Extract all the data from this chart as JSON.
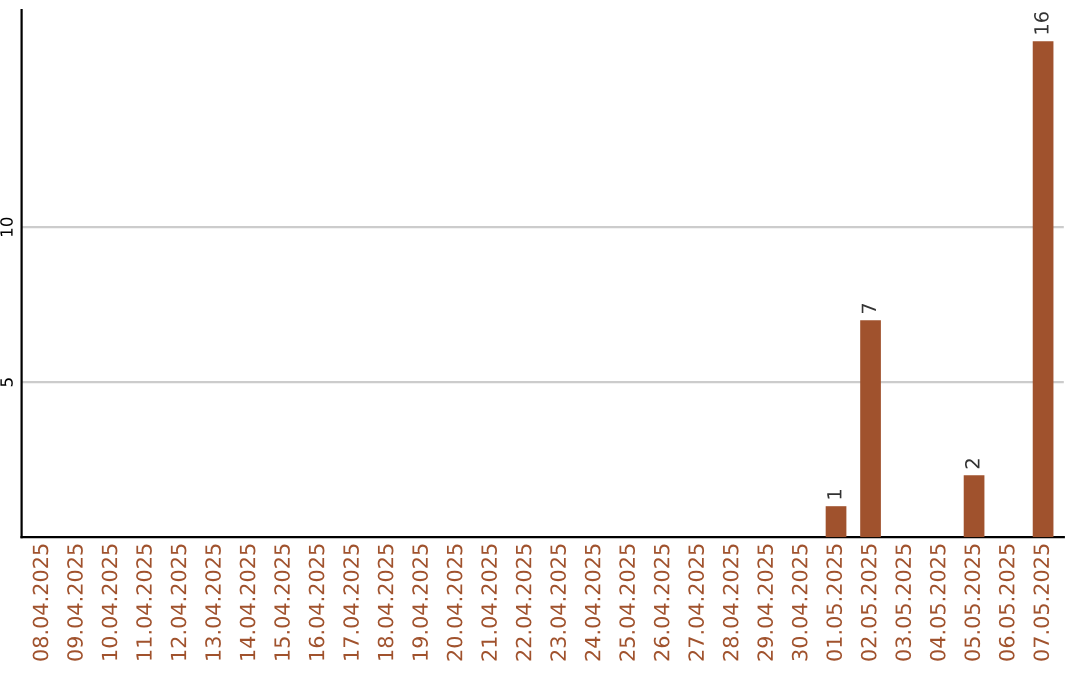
{
  "chart_data": {
    "type": "bar",
    "categories": [
      "08.04.2025",
      "09.04.2025",
      "10.04.2025",
      "11.04.2025",
      "12.04.2025",
      "13.04.2025",
      "14.04.2025",
      "15.04.2025",
      "16.04.2025",
      "17.04.2025",
      "18.04.2025",
      "19.04.2025",
      "20.04.2025",
      "21.04.2025",
      "22.04.2025",
      "23.04.2025",
      "24.04.2025",
      "25.04.2025",
      "26.04.2025",
      "27.04.2025",
      "28.04.2025",
      "29.04.2025",
      "30.04.2025",
      "01.05.2025",
      "02.05.2025",
      "03.05.2025",
      "04.05.2025",
      "05.05.2025",
      "06.05.2025",
      "07.05.2025"
    ],
    "values": [
      0,
      0,
      0,
      0,
      0,
      0,
      0,
      0,
      0,
      0,
      0,
      0,
      0,
      0,
      0,
      0,
      0,
      0,
      0,
      0,
      0,
      0,
      0,
      1,
      7,
      0,
      0,
      2,
      0,
      16
    ],
    "value_labels": [
      null,
      null,
      null,
      null,
      null,
      null,
      null,
      null,
      null,
      null,
      null,
      null,
      null,
      null,
      null,
      null,
      null,
      null,
      null,
      null,
      null,
      null,
      null,
      "1",
      "7",
      null,
      null,
      "2",
      null,
      "16"
    ],
    "color": "#a0522d",
    "ylim": [
      0,
      17
    ],
    "yticks": [
      5,
      10
    ],
    "grid": "y"
  }
}
